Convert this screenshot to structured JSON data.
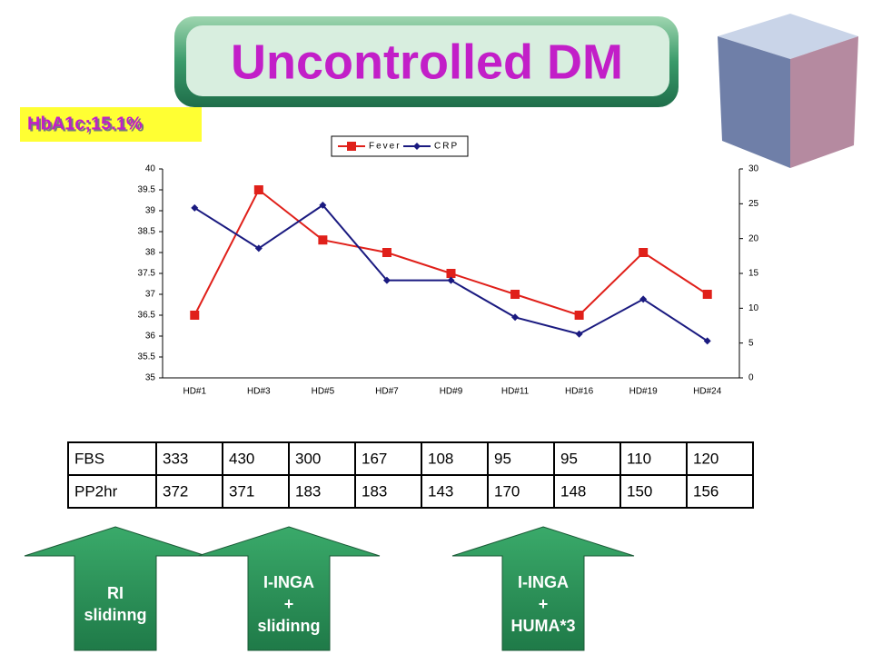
{
  "title": "Uncontrolled DM",
  "badge": "HbA1c;15.1%",
  "chart_data": {
    "type": "line",
    "categories": [
      "HD#1",
      "HD#3",
      "HD#5",
      "HD#7",
      "HD#9",
      "HD#11",
      "HD#16",
      "HD#19",
      "HD#24"
    ],
    "series": [
      {
        "name": "Fever",
        "color": "#e0201a",
        "marker": "square",
        "values": [
          36.5,
          39.5,
          38.3,
          38,
          37.5,
          37,
          36.5,
          38,
          37
        ]
      },
      {
        "name": "CRP",
        "color": "#1a1a80",
        "marker": "diamond",
        "axis": "y2",
        "values": [
          24.4,
          18.6,
          24.8,
          14,
          14,
          8.7,
          6.3,
          11.3,
          5.3
        ]
      }
    ],
    "ylim": [
      35,
      40
    ],
    "yticks": [
      35,
      35.5,
      36,
      36.5,
      37,
      37.5,
      38,
      38.5,
      39,
      39.5,
      40
    ],
    "y2lim": [
      0,
      30
    ],
    "y2ticks": [
      0,
      5,
      10,
      15,
      20,
      25,
      30
    ],
    "legend": "top"
  },
  "table": {
    "rows": [
      [
        "FBS",
        "333",
        "430",
        "300",
        "167",
        "108",
        "95",
        "95",
        "110",
        "120"
      ],
      [
        "PP2hr",
        "372",
        "371",
        "183",
        "183",
        "143",
        "170",
        "148",
        "150",
        "156"
      ]
    ]
  },
  "arrows": [
    {
      "lines": [
        "RI",
        "slidinng"
      ]
    },
    {
      "lines": [
        "I-INGA",
        "+",
        "slidinng"
      ]
    },
    {
      "lines": [
        "I-INGA",
        "+",
        "HUMA*3"
      ]
    }
  ]
}
